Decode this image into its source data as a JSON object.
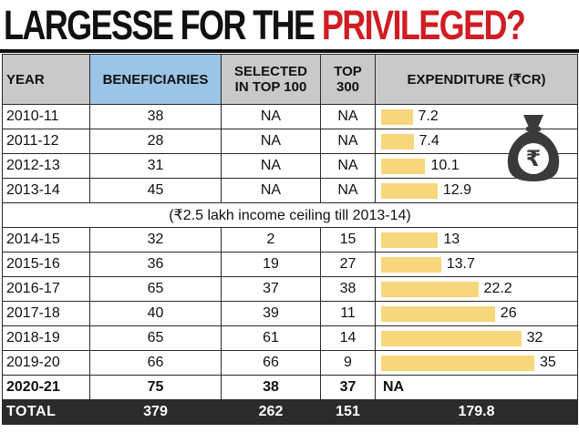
{
  "title": {
    "part1": "LARGESSE FOR THE",
    "part2": "PRIVILEGED?"
  },
  "headers": {
    "year": "YEAR",
    "beneficiaries": "BENEFICIARIES",
    "top100_line1": "SELECTED",
    "top100_line2": "IN TOP 100",
    "top300_line1": "TOP",
    "top300_line2": "300",
    "expenditure": "EXPENDITURE (₹CR)"
  },
  "note": "(₹2.5 lakh income ceiling till 2013-14)",
  "icon": "rupee-money-bag-icon",
  "colors": {
    "bar": "#f7d77b",
    "beneficiaries_header": "#9cc4e6",
    "title_accent": "#d01c23"
  },
  "rows": [
    {
      "year": "2010-11",
      "beneficiaries": "38",
      "top100": "NA",
      "top300": "NA",
      "expenditure": "7.2"
    },
    {
      "year": "2011-12",
      "beneficiaries": "28",
      "top100": "NA",
      "top300": "NA",
      "expenditure": "7.4"
    },
    {
      "year": "2012-13",
      "beneficiaries": "31",
      "top100": "NA",
      "top300": "NA",
      "expenditure": "10.1"
    },
    {
      "year": "2013-14",
      "beneficiaries": "45",
      "top100": "NA",
      "top300": "NA",
      "expenditure": "12.9"
    },
    {
      "year": "2014-15",
      "beneficiaries": "32",
      "top100": "2",
      "top300": "15",
      "expenditure": "13"
    },
    {
      "year": "2015-16",
      "beneficiaries": "36",
      "top100": "19",
      "top300": "27",
      "expenditure": "13.7"
    },
    {
      "year": "2016-17",
      "beneficiaries": "65",
      "top100": "37",
      "top300": "38",
      "expenditure": "22.2"
    },
    {
      "year": "2017-18",
      "beneficiaries": "40",
      "top100": "39",
      "top300": "11",
      "expenditure": "26"
    },
    {
      "year": "2018-19",
      "beneficiaries": "65",
      "top100": "61",
      "top300": "14",
      "expenditure": "32"
    },
    {
      "year": "2019-20",
      "beneficiaries": "66",
      "top100": "66",
      "top300": "9",
      "expenditure": "35"
    },
    {
      "year": "2020-21",
      "beneficiaries": "75",
      "top100": "38",
      "top300": "37",
      "expenditure": "NA"
    }
  ],
  "total": {
    "label": "TOTAL",
    "beneficiaries": "379",
    "top100": "262",
    "top300": "151",
    "expenditure": "179.8"
  },
  "chart_data": {
    "type": "table",
    "title": "LARGESSE FOR THE PRIVILEGED?",
    "columns": [
      "YEAR",
      "BENEFICIARIES",
      "SELECTED IN TOP 100",
      "TOP 300",
      "EXPENDITURE (₹CR)"
    ],
    "categories": [
      "2010-11",
      "2011-12",
      "2012-13",
      "2013-14",
      "2014-15",
      "2015-16",
      "2016-17",
      "2017-18",
      "2018-19",
      "2019-20",
      "2020-21"
    ],
    "series": [
      {
        "name": "EXPENDITURE (₹CR)",
        "values": [
          7.2,
          7.4,
          10.1,
          12.9,
          13,
          13.7,
          22.2,
          26,
          32,
          35,
          null
        ]
      }
    ],
    "xlim": [
      0,
      35
    ]
  }
}
